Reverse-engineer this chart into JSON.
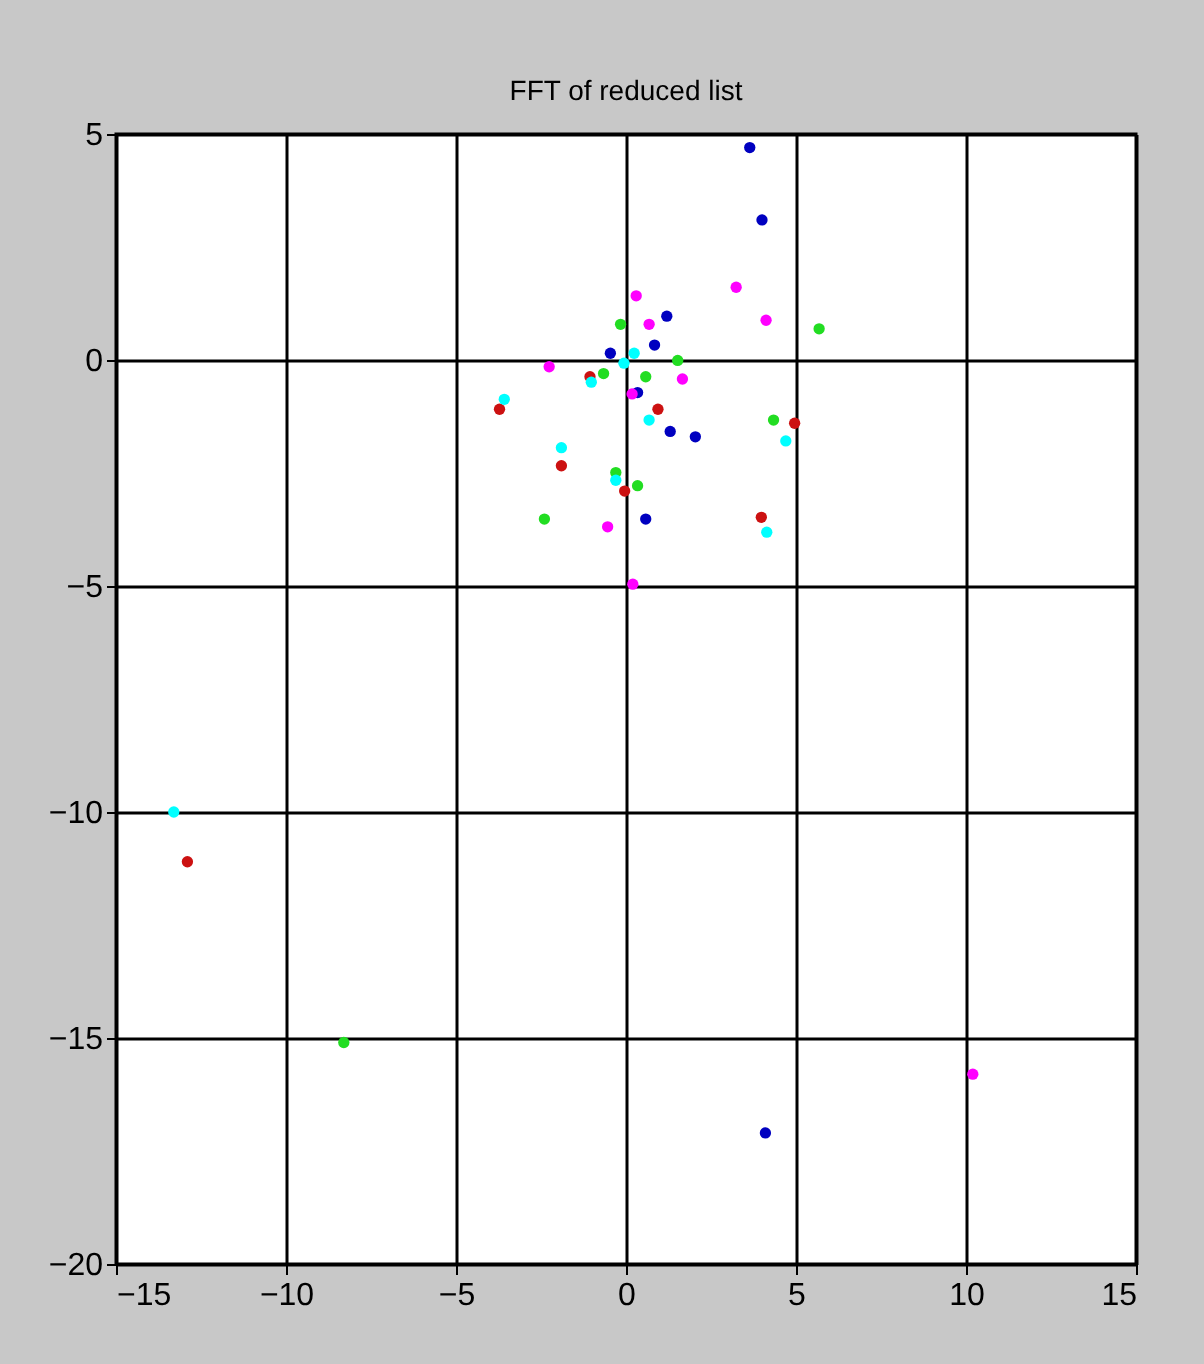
{
  "chart_data": {
    "type": "scatter",
    "title": "FFT of reduced list",
    "xlim": [
      -15,
      15
    ],
    "ylim": [
      -20,
      5
    ],
    "xticks": [
      -15,
      -10,
      -5,
      0,
      5,
      10,
      15
    ],
    "yticks": [
      -20,
      -15,
      -10,
      -5,
      0,
      5
    ],
    "grid": true,
    "marker": "circle",
    "legend": false,
    "series": [
      {
        "color": "#0000c0",
        "x": [
          3.64,
          4.0,
          1.2,
          0.84,
          0.34,
          1.3,
          2.04,
          0.58,
          4.1,
          -0.46
        ],
        "values": [
          4.7,
          3.1,
          0.97,
          0.33,
          -0.72,
          -1.58,
          -1.7,
          -3.52,
          -17.1,
          0.15
        ]
      },
      {
        "color": "#ff00ff",
        "x": [
          0.3,
          0.68,
          3.24,
          4.12,
          -2.26,
          1.66,
          -0.54,
          0.2,
          10.2,
          0.18
        ],
        "values": [
          1.42,
          0.79,
          1.61,
          0.88,
          -0.15,
          -0.42,
          -3.69,
          -4.96,
          -15.8,
          -0.75
        ]
      },
      {
        "color": "#22dd22",
        "x": [
          -0.16,
          5.68,
          1.52,
          -0.66,
          0.58,
          4.34,
          -0.3,
          0.34,
          -2.4,
          -8.3
        ],
        "values": [
          0.79,
          0.69,
          -0.01,
          -0.3,
          -0.37,
          -1.33,
          -2.49,
          -2.78,
          -3.52,
          -15.1
        ]
      },
      {
        "color": "#cc1111",
        "x": [
          -3.72,
          -1.9,
          0.94,
          4.96,
          -0.04,
          3.98,
          -1.06,
          -12.9
        ],
        "values": [
          -1.09,
          -2.34,
          -1.09,
          -1.4,
          -2.9,
          -3.48,
          -0.37,
          -11.1
        ]
      },
      {
        "color": "#00ffff",
        "x": [
          -3.58,
          -1.9,
          -1.02,
          0.68,
          4.7,
          4.14,
          -0.3,
          -0.06,
          0.24,
          -13.3
        ],
        "values": [
          -0.87,
          -1.94,
          -0.49,
          -1.33,
          -1.79,
          -3.81,
          -2.66,
          -0.07,
          0.15,
          -10.0
        ]
      }
    ]
  }
}
